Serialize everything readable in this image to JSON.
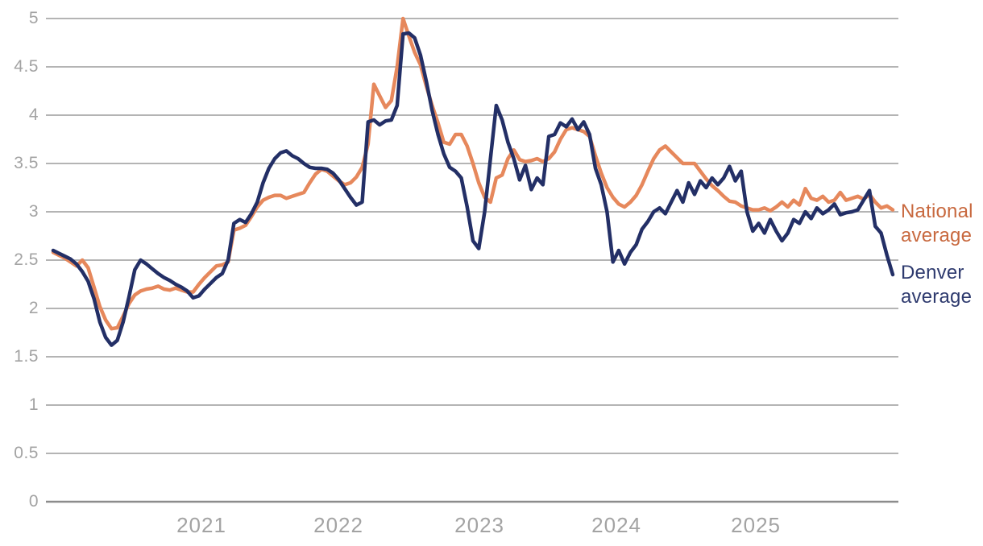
{
  "chart_data": {
    "type": "line",
    "title": "",
    "y_ticks": [
      0,
      0.5,
      1,
      1.5,
      2,
      2.5,
      3,
      3.5,
      4,
      4.5,
      5
    ],
    "y_tick_labels": [
      "0",
      "0.5",
      "1",
      "1.5",
      "2",
      "2.5",
      "3",
      "3.5",
      "4",
      "4.5",
      "5"
    ],
    "ylim": [
      0,
      5
    ],
    "x_tick_labels": [
      "2021",
      "2022",
      "2023",
      "2024",
      "2025"
    ],
    "x_tick_indices": [
      25.43,
      48.93,
      73.12,
      96.61,
      120.52
    ],
    "grid": true,
    "legend_position": "right",
    "series": [
      {
        "name": "National average",
        "color": "#E6885C",
        "label_color": "#C8693F",
        "values": [
          2.58,
          2.55,
          2.52,
          2.48,
          2.44,
          2.5,
          2.42,
          2.22,
          2.02,
          1.88,
          1.79,
          1.8,
          1.92,
          2.05,
          2.14,
          2.18,
          2.2,
          2.21,
          2.23,
          2.2,
          2.19,
          2.21,
          2.19,
          2.17,
          2.17,
          2.25,
          2.32,
          2.38,
          2.44,
          2.45,
          2.48,
          2.81,
          2.83,
          2.86,
          2.95,
          3.05,
          3.12,
          3.15,
          3.17,
          3.17,
          3.14,
          3.16,
          3.18,
          3.2,
          3.3,
          3.39,
          3.44,
          3.42,
          3.37,
          3.32,
          3.28,
          3.3,
          3.36,
          3.46,
          3.7,
          4.32,
          4.2,
          4.08,
          4.15,
          4.5,
          5.0,
          4.82,
          4.65,
          4.52,
          4.3,
          4.1,
          3.92,
          3.72,
          3.7,
          3.8,
          3.8,
          3.68,
          3.5,
          3.3,
          3.15,
          3.1,
          3.35,
          3.38,
          3.55,
          3.64,
          3.54,
          3.52,
          3.53,
          3.55,
          3.52,
          3.55,
          3.62,
          3.75,
          3.85,
          3.87,
          3.85,
          3.83,
          3.78,
          3.58,
          3.4,
          3.25,
          3.15,
          3.08,
          3.05,
          3.1,
          3.17,
          3.28,
          3.42,
          3.55,
          3.64,
          3.68,
          3.62,
          3.56,
          3.5,
          3.5,
          3.5,
          3.42,
          3.34,
          3.27,
          3.22,
          3.16,
          3.11,
          3.1,
          3.06,
          3.04,
          3.02,
          3.02,
          3.04,
          3.01,
          3.05,
          3.1,
          3.05,
          3.12,
          3.07,
          3.24,
          3.14,
          3.12,
          3.16,
          3.1,
          3.12,
          3.2,
          3.12,
          3.14,
          3.16,
          3.13,
          3.18,
          3.1,
          3.04,
          3.06,
          3.02
        ]
      },
      {
        "name": "Denver average",
        "color": "#232F66",
        "label_color": "#2E3A6E",
        "values": [
          2.6,
          2.57,
          2.54,
          2.51,
          2.46,
          2.38,
          2.28,
          2.1,
          1.86,
          1.7,
          1.62,
          1.67,
          1.86,
          2.12,
          2.4,
          2.5,
          2.46,
          2.41,
          2.36,
          2.32,
          2.29,
          2.25,
          2.22,
          2.18,
          2.11,
          2.13,
          2.2,
          2.26,
          2.32,
          2.36,
          2.5,
          2.88,
          2.92,
          2.89,
          2.98,
          3.1,
          3.3,
          3.45,
          3.55,
          3.61,
          3.63,
          3.58,
          3.55,
          3.5,
          3.46,
          3.45,
          3.45,
          3.44,
          3.4,
          3.33,
          3.24,
          3.15,
          3.07,
          3.1,
          3.93,
          3.95,
          3.9,
          3.94,
          3.95,
          4.1,
          4.84,
          4.85,
          4.8,
          4.62,
          4.35,
          4.05,
          3.8,
          3.6,
          3.46,
          3.42,
          3.35,
          3.05,
          2.7,
          2.62,
          3.0,
          3.55,
          4.1,
          3.95,
          3.72,
          3.55,
          3.33,
          3.48,
          3.23,
          3.35,
          3.28,
          3.78,
          3.8,
          3.92,
          3.88,
          3.96,
          3.85,
          3.93,
          3.8,
          3.45,
          3.28,
          3.0,
          2.48,
          2.6,
          2.46,
          2.58,
          2.66,
          2.82,
          2.9,
          3.0,
          3.04,
          2.98,
          3.1,
          3.22,
          3.1,
          3.3,
          3.18,
          3.32,
          3.25,
          3.35,
          3.28,
          3.35,
          3.47,
          3.32,
          3.42,
          3.0,
          2.8,
          2.88,
          2.78,
          2.92,
          2.8,
          2.7,
          2.78,
          2.92,
          2.88,
          3.0,
          2.93,
          3.04,
          2.98,
          3.02,
          3.08,
          2.97,
          2.99,
          3.0,
          3.02,
          3.12,
          3.22,
          2.85,
          2.78,
          2.55,
          2.35
        ]
      }
    ],
    "colors": {
      "gridline": "#b4b4b4",
      "zero_line": "#8c8c8c",
      "tick_label": "#a3a3a3",
      "background": "#ffffff"
    }
  }
}
